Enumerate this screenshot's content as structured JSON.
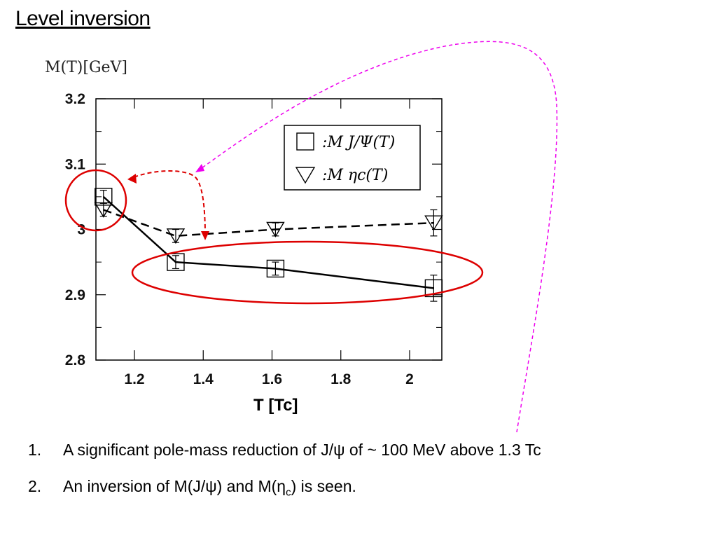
{
  "slide": {
    "title": "Level inversion"
  },
  "chart_data": {
    "type": "line",
    "ylabel": "M(T)[GeV]",
    "xlabel": "T [Tc]",
    "xlim": [
      1.1,
      2.1
    ],
    "ylim": [
      2.8,
      3.2
    ],
    "xticks": [
      "1.2",
      "1.4",
      "1.6",
      "1.8",
      "2"
    ],
    "yticks": [
      "3.2",
      "3.1",
      "3",
      "2.9",
      "2.8"
    ],
    "legend_position": "top-right",
    "series": [
      {
        "name": "M_{J/Ψ}(T)",
        "marker": "square",
        "line": "solid",
        "points": [
          {
            "x": 1.11,
            "y": 3.05,
            "err": 0.01
          },
          {
            "x": 1.32,
            "y": 2.95,
            "err": 0.01
          },
          {
            "x": 1.61,
            "y": 2.94,
            "err": 0.01
          },
          {
            "x": 2.07,
            "y": 2.91,
            "err": 0.02
          }
        ]
      },
      {
        "name": "M_{ηc}(T)",
        "marker": "triangle-down",
        "line": "dashed",
        "points": [
          {
            "x": 1.11,
            "y": 3.03,
            "err": 0.01
          },
          {
            "x": 1.32,
            "y": 2.99,
            "err": 0.01
          },
          {
            "x": 1.61,
            "y": 3.0,
            "err": 0.01
          },
          {
            "x": 2.07,
            "y": 3.01,
            "err": 0.02
          }
        ]
      }
    ],
    "annotations": {
      "highlight_color": "#dd0000",
      "arrow_color": "#dd0000",
      "pointer_color": "#ee00ee"
    }
  },
  "notes": [
    {
      "num": "1.",
      "text_before": "A significant pole-mass reduction of J/ψ of  ~ 100 MeV above 1.3 Tc"
    },
    {
      "num": "2.",
      "text_before": "An inversion of M(J/ψ) and M(η",
      "sub": "c",
      "text_after": ") is seen."
    }
  ]
}
